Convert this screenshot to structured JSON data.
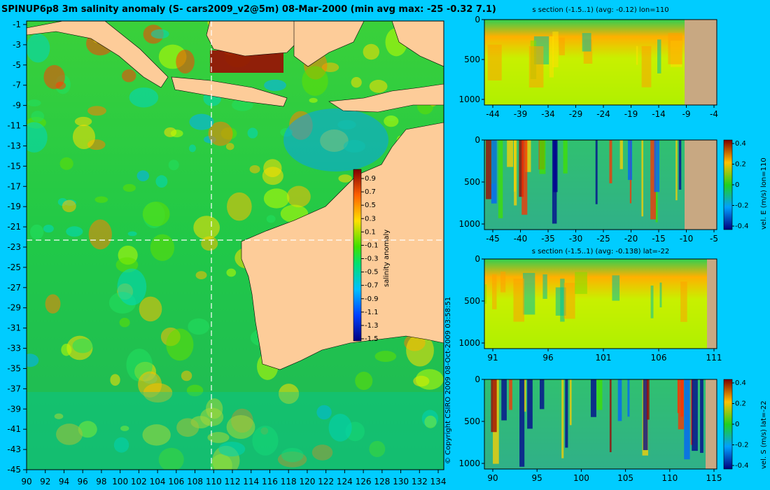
{
  "map": {
    "title": "SPINUP6p8 3m salinity anomaly (S- cars2009_v2@5m) 08-Mar-2000 (min avg max: -25 -0.32 7.1)",
    "copyright": "© Copyright CSIRO 2009  08-Oct-2009 03:58:51",
    "lon_ticks": [
      "90",
      "92",
      "94",
      "96",
      "98",
      "100",
      "102",
      "104",
      "106",
      "108",
      "110",
      "112",
      "114",
      "116",
      "118",
      "120",
      "122",
      "124",
      "126",
      "128",
      "130",
      "132",
      "134"
    ],
    "lat_ticks": [
      "-1",
      "-3",
      "-5",
      "-7",
      "-9",
      "-11",
      "-13",
      "-15",
      "-17",
      "-19",
      "-21",
      "-23",
      "-25",
      "-27",
      "-29",
      "-31",
      "-33",
      "-35",
      "-37",
      "-39",
      "-41",
      "-43",
      "-45"
    ],
    "colorbar": {
      "label": "salinity anomaly",
      "ticks": [
        "0.9",
        "0.7",
        "0.5",
        "0.3",
        "0.1",
        "-0.1",
        "-0.3",
        "-0.5",
        "-0.7",
        "-0.9",
        "-1.1",
        "-1.3",
        "-1.5"
      ]
    },
    "section_lon": 110,
    "section_lat": -22,
    "colors": {
      "land": "#fdcc99",
      "background": "#00ccff"
    }
  },
  "panels": [
    {
      "id": "s-section-lon",
      "title": "s section (-1.5..1) (avg: -0.12) lon=110",
      "x_ticks": [
        "-44",
        "-39",
        "-34",
        "-29",
        "-24",
        "-19",
        "-14",
        "-9",
        "-4"
      ],
      "y_ticks": [
        "0",
        "500",
        "1000"
      ],
      "colorbar": null
    },
    {
      "id": "vel-e-lon",
      "title": "",
      "x_ticks": [
        "-45",
        "-40",
        "-35",
        "-30",
        "-25",
        "-20",
        "-15",
        "-10",
        "-5"
      ],
      "y_ticks": [
        "0",
        "500",
        "1000"
      ],
      "colorbar": {
        "label": "vel. E (m/s) lon=110",
        "ticks": [
          "0.4",
          "0.2",
          "0",
          "-0.2",
          "-0.4"
        ]
      }
    },
    {
      "id": "s-section-lat",
      "title": "s section (-1.5..1) (avg: -0.138) lat=-22",
      "x_ticks": [
        "91",
        "96",
        "101",
        "106",
        "111"
      ],
      "y_ticks": [
        "0",
        "500",
        "1000"
      ],
      "colorbar": null
    },
    {
      "id": "vel-s-lat",
      "title": "",
      "x_ticks": [
        "90",
        "95",
        "100",
        "105",
        "110",
        "115"
      ],
      "y_ticks": [
        "0",
        "500",
        "1000"
      ],
      "colorbar": {
        "label": "vel. S (m/s) lat=-22",
        "ticks": [
          "0.4",
          "0.2",
          "0",
          "-0.2",
          "-0.4"
        ]
      }
    }
  ]
}
